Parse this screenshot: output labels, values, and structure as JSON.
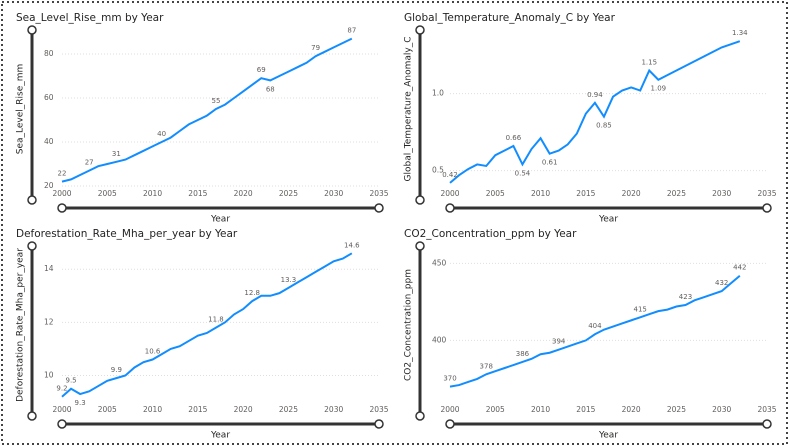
{
  "chart_data": [
    {
      "type": "line",
      "title": "Sea_Level_Rise_mm by Year",
      "x_label": "Year",
      "y_label": "Sea_Level_Rise_mm",
      "x": [
        2000,
        2001,
        2002,
        2003,
        2004,
        2005,
        2006,
        2007,
        2008,
        2009,
        2010,
        2011,
        2012,
        2013,
        2014,
        2015,
        2016,
        2017,
        2018,
        2019,
        2020,
        2021,
        2022,
        2023,
        2024,
        2025,
        2026,
        2027,
        2028,
        2029,
        2030,
        2031,
        2032
      ],
      "values": [
        22,
        23,
        25,
        27,
        29,
        30,
        31,
        32,
        34,
        36,
        38,
        40,
        42,
        45,
        48,
        50,
        52,
        55,
        57,
        60,
        63,
        66,
        69,
        68,
        70,
        72,
        74,
        76,
        79,
        81,
        83,
        85,
        87
      ],
      "value_labels": [
        "22",
        null,
        null,
        "27",
        null,
        null,
        "31",
        null,
        null,
        null,
        null,
        "40",
        null,
        null,
        null,
        null,
        null,
        "55",
        null,
        null,
        null,
        null,
        "69",
        "68",
        null,
        null,
        null,
        null,
        "79",
        null,
        null,
        null,
        "87"
      ],
      "color": "#118dff",
      "xlim": [
        2000,
        2035
      ],
      "xticks": [
        2000,
        2005,
        2010,
        2015,
        2020,
        2025,
        2030,
        2035
      ],
      "ylim": [
        20,
        90
      ],
      "yticks": [
        20,
        40,
        60,
        80
      ],
      "grid": true
    },
    {
      "type": "line",
      "title": "Global_Temperature_Anomaly_C by Year",
      "x_label": "Year",
      "y_label": "Global_Temperature_Anomaly_C",
      "x": [
        2000,
        2001,
        2002,
        2003,
        2004,
        2005,
        2006,
        2007,
        2008,
        2009,
        2010,
        2011,
        2012,
        2013,
        2014,
        2015,
        2016,
        2017,
        2018,
        2019,
        2020,
        2021,
        2022,
        2023,
        2024,
        2025,
        2026,
        2027,
        2028,
        2029,
        2030,
        2031,
        2032
      ],
      "values": [
        0.42,
        0.47,
        0.51,
        0.54,
        0.53,
        0.6,
        0.63,
        0.66,
        0.54,
        0.64,
        0.71,
        0.61,
        0.63,
        0.67,
        0.74,
        0.87,
        0.94,
        0.85,
        0.98,
        1.02,
        1.04,
        1.02,
        1.15,
        1.09,
        1.12,
        1.15,
        1.18,
        1.21,
        1.24,
        1.27,
        1.3,
        1.32,
        1.34
      ],
      "value_labels": [
        "0.42",
        null,
        null,
        null,
        null,
        null,
        null,
        "0.66",
        "0.54",
        null,
        null,
        "0.61",
        null,
        null,
        null,
        null,
        "0.94",
        "0.85",
        null,
        null,
        null,
        null,
        "1.15",
        "1.09",
        null,
        null,
        null,
        null,
        null,
        null,
        null,
        null,
        "1.34"
      ],
      "color": "#118dff",
      "xlim": [
        2000,
        2035
      ],
      "xticks": [
        2000,
        2005,
        2010,
        2015,
        2020,
        2025,
        2030,
        2035
      ],
      "ylim": [
        0.4,
        1.4
      ],
      "yticks": [
        0.5,
        {
          "value": 1,
          "label": "1.0"
        }
      ],
      "grid": true
    },
    {
      "type": "line",
      "title": "Deforestation_Rate_Mha_per_year by Year",
      "x_label": "Year",
      "y_label": "Deforestation_Rate_Mha_per_year",
      "x": [
        2000,
        2001,
        2002,
        2003,
        2004,
        2005,
        2006,
        2007,
        2008,
        2009,
        2010,
        2011,
        2012,
        2013,
        2014,
        2015,
        2016,
        2017,
        2018,
        2019,
        2020,
        2021,
        2022,
        2023,
        2024,
        2025,
        2026,
        2027,
        2028,
        2029,
        2030,
        2031,
        2032
      ],
      "values": [
        9.2,
        9.5,
        9.3,
        9.4,
        9.6,
        9.8,
        9.9,
        10.0,
        10.3,
        10.5,
        10.6,
        10.8,
        11.0,
        11.1,
        11.3,
        11.5,
        11.6,
        11.8,
        12.0,
        12.3,
        12.5,
        12.8,
        13.0,
        13.0,
        13.1,
        13.3,
        13.5,
        13.7,
        13.9,
        14.1,
        14.3,
        14.4,
        14.6
      ],
      "value_labels": [
        "9.2",
        "9.5",
        "9.3",
        null,
        null,
        null,
        "9.9",
        null,
        null,
        null,
        "10.6",
        null,
        null,
        null,
        null,
        null,
        null,
        "11.8",
        null,
        null,
        null,
        "12.8",
        null,
        null,
        null,
        "13.3",
        null,
        null,
        null,
        null,
        null,
        null,
        "14.6"
      ],
      "color": "#118dff",
      "xlim": [
        2000,
        2035
      ],
      "xticks": [
        2000,
        2005,
        2010,
        2015,
        2020,
        2025,
        2030,
        2035
      ],
      "ylim": [
        9,
        14.8
      ],
      "yticks": [
        10,
        12,
        14
      ],
      "grid": true
    },
    {
      "type": "line",
      "title": "CO2_Concentration_ppm by Year",
      "x_label": "Year",
      "y_label": "CO2_Concentration_ppm",
      "x": [
        2000,
        2001,
        2002,
        2003,
        2004,
        2005,
        2006,
        2007,
        2008,
        2009,
        2010,
        2011,
        2012,
        2013,
        2014,
        2015,
        2016,
        2017,
        2018,
        2019,
        2020,
        2021,
        2022,
        2023,
        2024,
        2025,
        2026,
        2027,
        2028,
        2029,
        2030,
        2031,
        2032
      ],
      "values": [
        370,
        371,
        373,
        375,
        378,
        380,
        382,
        384,
        386,
        388,
        391,
        392,
        394,
        396,
        398,
        400,
        404,
        407,
        409,
        411,
        413,
        415,
        417,
        419,
        420,
        422,
        423,
        426,
        428,
        430,
        432,
        437,
        442
      ],
      "value_labels": [
        "370",
        null,
        null,
        null,
        "378",
        null,
        null,
        null,
        "386",
        null,
        null,
        null,
        "394",
        null,
        null,
        null,
        "404",
        null,
        null,
        null,
        null,
        "415",
        null,
        null,
        null,
        null,
        "423",
        null,
        null,
        null,
        "432",
        null,
        "442"
      ],
      "color": "#118dff",
      "xlim": [
        2000,
        2035
      ],
      "xticks": [
        2000,
        2005,
        2010,
        2015,
        2020,
        2025,
        2030,
        2035
      ],
      "ylim": [
        360,
        460
      ],
      "yticks": [
        400,
        450
      ],
      "grid": true
    }
  ]
}
